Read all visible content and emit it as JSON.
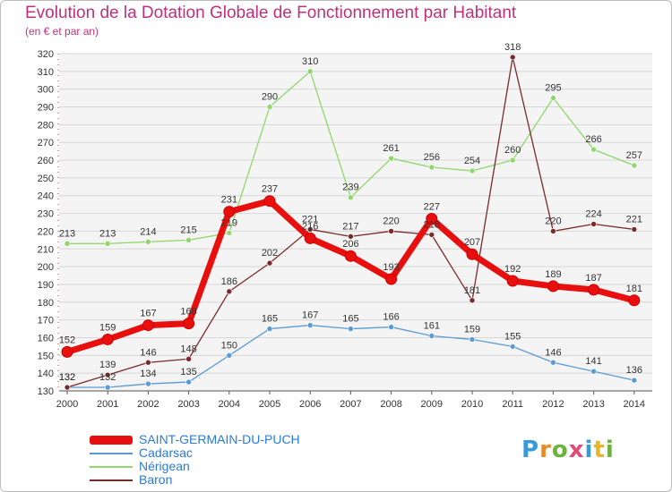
{
  "title": "Evolution de la Dotation Globale de Fonctionnement par Habitant",
  "subtitle": "(en € et par an)",
  "logo": {
    "letters": [
      "P",
      "r",
      "o",
      "x",
      "i",
      "t",
      "i"
    ],
    "colors": [
      "#3a9ad9",
      "#e8892a",
      "#6cb33e",
      "#e24a7a",
      "#3a9ad9",
      "#e8b52a",
      "#6cb33e"
    ]
  },
  "chart_data": {
    "type": "line",
    "x": [
      2000,
      2001,
      2002,
      2003,
      2004,
      2005,
      2006,
      2007,
      2008,
      2009,
      2010,
      2011,
      2012,
      2013,
      2014
    ],
    "x_tick_labels": [
      "2000",
      "2001",
      "2002",
      "2003",
      "2004",
      "2005",
      "2006",
      "2007",
      "2008",
      "2009",
      "2010",
      "2011",
      "2012",
      "2013",
      "2014"
    ],
    "y_ticks": [
      130,
      140,
      150,
      160,
      170,
      180,
      190,
      200,
      210,
      220,
      230,
      240,
      250,
      260,
      270,
      280,
      290,
      300,
      310,
      320
    ],
    "ylim": [
      130,
      320
    ],
    "grid": "horizontal",
    "legend_position": "bottom-left",
    "series": [
      {
        "name": "SAINT-GERMAIN-DU-PUCH",
        "color": "#e8100f",
        "values": [
          152,
          159,
          167,
          168,
          231,
          237,
          216,
          206,
          193,
          227,
          207,
          192,
          189,
          187,
          181
        ]
      },
      {
        "name": "Cadarsac",
        "color": "#5b9bd5",
        "values": [
          132,
          132,
          134,
          135,
          150,
          165,
          167,
          165,
          166,
          161,
          159,
          155,
          146,
          141,
          136
        ]
      },
      {
        "name": "Nérigean",
        "color": "#8ed86a",
        "values": [
          213,
          213,
          214,
          215,
          219,
          290,
          310,
          239,
          261,
          256,
          254,
          260,
          295,
          266,
          257
        ]
      },
      {
        "name": "Baron",
        "color": "#7a2a2a",
        "values": [
          132,
          139,
          146,
          148,
          186,
          202,
          221,
          217,
          220,
          218,
          181,
          318,
          220,
          224,
          221
        ]
      }
    ]
  }
}
